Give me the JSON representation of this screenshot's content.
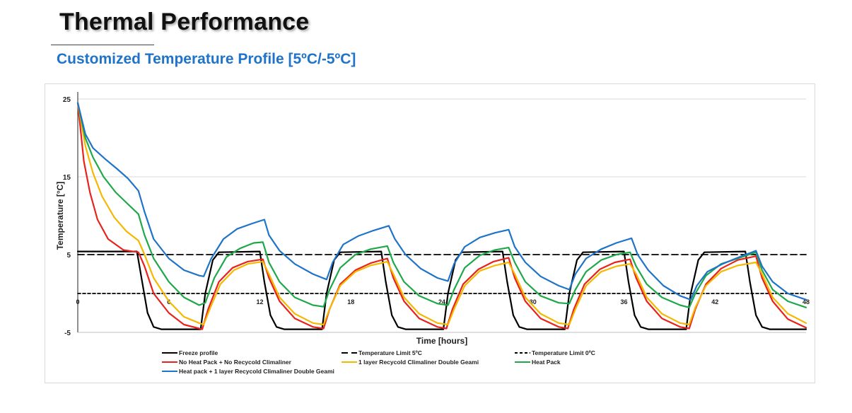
{
  "page": {
    "title": "Thermal Performance",
    "subtitle": "Customized Temperature Profile [5ºC/-5ºC]",
    "subtitle_color": "#1f73c8"
  },
  "chart_data": {
    "type": "line",
    "title": "",
    "xlabel": "Time [hours]",
    "ylabel": "Temperature [°C]",
    "xlim": [
      0,
      48
    ],
    "ylim": [
      -5,
      25
    ],
    "xticks": [
      0,
      6,
      12,
      18,
      24,
      30,
      36,
      42,
      48
    ],
    "yticks": [
      -5,
      5,
      15,
      25
    ],
    "grid": "horizontal",
    "legend_position": "bottom",
    "series": [
      {
        "name": "Freeze profile",
        "color": "#000000",
        "dash": "solid",
        "points": [
          [
            0,
            5.4
          ],
          [
            3.9,
            5.4
          ],
          [
            4.2,
            2
          ],
          [
            4.6,
            -2.5
          ],
          [
            5.0,
            -4.3
          ],
          [
            5.5,
            -4.6
          ],
          [
            8.1,
            -4.6
          ],
          [
            8.4,
            0
          ],
          [
            8.9,
            4.3
          ],
          [
            9.3,
            5.3
          ],
          [
            12.0,
            5.4
          ],
          [
            12.3,
            1.5
          ],
          [
            12.7,
            -2.8
          ],
          [
            13.1,
            -4.3
          ],
          [
            13.6,
            -4.6
          ],
          [
            16.1,
            -4.6
          ],
          [
            16.4,
            0
          ],
          [
            16.9,
            4.3
          ],
          [
            17.3,
            5.3
          ],
          [
            20.0,
            5.4
          ],
          [
            20.3,
            1.5
          ],
          [
            20.7,
            -2.8
          ],
          [
            21.1,
            -4.3
          ],
          [
            21.6,
            -4.6
          ],
          [
            24.1,
            -4.6
          ],
          [
            24.4,
            0
          ],
          [
            24.9,
            4.3
          ],
          [
            25.3,
            5.3
          ],
          [
            28.0,
            5.4
          ],
          [
            28.3,
            1.5
          ],
          [
            28.7,
            -2.8
          ],
          [
            29.1,
            -4.3
          ],
          [
            29.6,
            -4.6
          ],
          [
            32.1,
            -4.6
          ],
          [
            32.4,
            0
          ],
          [
            32.9,
            4.3
          ],
          [
            33.3,
            5.3
          ],
          [
            36.0,
            5.4
          ],
          [
            36.3,
            1.5
          ],
          [
            36.7,
            -2.8
          ],
          [
            37.1,
            -4.3
          ],
          [
            37.6,
            -4.6
          ],
          [
            40.1,
            -4.6
          ],
          [
            40.4,
            0
          ],
          [
            40.9,
            4.3
          ],
          [
            41.3,
            5.3
          ],
          [
            44.0,
            5.4
          ],
          [
            44.3,
            1.5
          ],
          [
            44.7,
            -2.8
          ],
          [
            45.1,
            -4.3
          ],
          [
            45.6,
            -4.6
          ],
          [
            48,
            -4.6
          ]
        ]
      },
      {
        "name": "Temperature Limit 5ºC",
        "color": "#000000",
        "dash": "dashed",
        "points": [
          [
            0,
            5
          ],
          [
            48,
            5
          ]
        ]
      },
      {
        "name": "Temperature Limit 0ºC",
        "color": "#000000",
        "dash": "dotted",
        "points": [
          [
            0,
            0
          ],
          [
            48,
            0
          ]
        ]
      },
      {
        "name": "No Heat Pack + No Recycold Climaliner",
        "color": "#e8221c",
        "dash": "solid",
        "points": [
          [
            0,
            24.5
          ],
          [
            0.4,
            17
          ],
          [
            0.8,
            13
          ],
          [
            1.3,
            9.5
          ],
          [
            2,
            7
          ],
          [
            3,
            5.6
          ],
          [
            4,
            5.3
          ],
          [
            4.4,
            3.5
          ],
          [
            5,
            0
          ],
          [
            6,
            -2.5
          ],
          [
            7,
            -4
          ],
          [
            8,
            -4.5
          ],
          [
            8.2,
            -4.6
          ],
          [
            8.6,
            -2
          ],
          [
            9.3,
            1.5
          ],
          [
            10.2,
            3.3
          ],
          [
            11.2,
            4.1
          ],
          [
            12.2,
            4.4
          ],
          [
            12.6,
            2
          ],
          [
            13.3,
            -1
          ],
          [
            14.3,
            -3.2
          ],
          [
            15.5,
            -4.3
          ],
          [
            16.2,
            -4.5
          ],
          [
            16.6,
            -2
          ],
          [
            17.3,
            1.2
          ],
          [
            18.3,
            3
          ],
          [
            19.3,
            3.9
          ],
          [
            20.4,
            4.5
          ],
          [
            20.8,
            2
          ],
          [
            21.5,
            -1
          ],
          [
            22.5,
            -3.2
          ],
          [
            23.7,
            -4.3
          ],
          [
            24.3,
            -4.5
          ],
          [
            24.7,
            -2
          ],
          [
            25.4,
            1.2
          ],
          [
            26.4,
            3.1
          ],
          [
            27.4,
            4.1
          ],
          [
            28.4,
            4.6
          ],
          [
            28.8,
            2
          ],
          [
            29.5,
            -1
          ],
          [
            30.5,
            -3.2
          ],
          [
            31.7,
            -4.3
          ],
          [
            32.3,
            -4.5
          ],
          [
            32.7,
            -2
          ],
          [
            33.4,
            1.2
          ],
          [
            34.4,
            3.1
          ],
          [
            35.4,
            4
          ],
          [
            36.4,
            4.4
          ],
          [
            36.8,
            2
          ],
          [
            37.5,
            -1
          ],
          [
            38.5,
            -3.2
          ],
          [
            39.7,
            -4.3
          ],
          [
            40.3,
            -4.5
          ],
          [
            40.7,
            -2
          ],
          [
            41.4,
            1.2
          ],
          [
            42.4,
            3.2
          ],
          [
            43.5,
            4.3
          ],
          [
            44.7,
            4.8
          ],
          [
            45.1,
            2
          ],
          [
            45.8,
            -1
          ],
          [
            46.8,
            -3.3
          ],
          [
            48,
            -4.4
          ]
        ]
      },
      {
        "name": "1 layer Recycold Climaliner Double Geami",
        "color": "#f5b800",
        "dash": "solid",
        "points": [
          [
            0,
            24.5
          ],
          [
            0.5,
            19
          ],
          [
            1,
            15.5
          ],
          [
            1.6,
            12.5
          ],
          [
            2.4,
            9.8
          ],
          [
            3.2,
            8
          ],
          [
            4,
            6.8
          ],
          [
            4.4,
            5
          ],
          [
            5,
            2
          ],
          [
            6,
            -1
          ],
          [
            7,
            -3
          ],
          [
            8,
            -3.8
          ],
          [
            8.3,
            -4
          ],
          [
            8.7,
            -2
          ],
          [
            9.4,
            1.2
          ],
          [
            10.3,
            3
          ],
          [
            11.2,
            3.8
          ],
          [
            12.2,
            4.1
          ],
          [
            12.6,
            2.5
          ],
          [
            13.3,
            -0.5
          ],
          [
            14.3,
            -2.6
          ],
          [
            15.5,
            -3.8
          ],
          [
            16.2,
            -4
          ],
          [
            16.6,
            -2
          ],
          [
            17.3,
            1
          ],
          [
            18.3,
            2.8
          ],
          [
            19.3,
            3.6
          ],
          [
            20.4,
            4.1
          ],
          [
            20.8,
            2.5
          ],
          [
            21.5,
            -0.5
          ],
          [
            22.5,
            -2.6
          ],
          [
            23.7,
            -3.8
          ],
          [
            24.4,
            -4
          ],
          [
            24.8,
            -2
          ],
          [
            25.5,
            1
          ],
          [
            26.5,
            2.9
          ],
          [
            27.5,
            3.6
          ],
          [
            28.4,
            4
          ],
          [
            28.8,
            2.5
          ],
          [
            29.5,
            -0.5
          ],
          [
            30.5,
            -2.6
          ],
          [
            31.7,
            -3.8
          ],
          [
            32.4,
            -4
          ],
          [
            32.8,
            -2
          ],
          [
            33.5,
            1
          ],
          [
            34.5,
            2.8
          ],
          [
            35.5,
            3.5
          ],
          [
            36.4,
            3.8
          ],
          [
            36.8,
            2.5
          ],
          [
            37.5,
            -0.5
          ],
          [
            38.5,
            -2.6
          ],
          [
            39.7,
            -3.8
          ],
          [
            40.3,
            -4
          ],
          [
            40.7,
            -1.8
          ],
          [
            41.4,
            1
          ],
          [
            42.4,
            2.8
          ],
          [
            43.5,
            3.6
          ],
          [
            44.7,
            4
          ],
          [
            45.1,
            2.5
          ],
          [
            45.8,
            -0.5
          ],
          [
            46.8,
            -2.6
          ],
          [
            48,
            -3.8
          ]
        ]
      },
      {
        "name": "Heat Pack",
        "color": "#1fa84a",
        "dash": "solid",
        "points": [
          [
            0,
            24.5
          ],
          [
            0.5,
            20
          ],
          [
            1,
            17.5
          ],
          [
            1.7,
            15
          ],
          [
            2.5,
            13
          ],
          [
            3.3,
            11.5
          ],
          [
            4,
            10.2
          ],
          [
            4.4,
            7.5
          ],
          [
            5,
            4.5
          ],
          [
            6,
            1.5
          ],
          [
            7,
            -0.5
          ],
          [
            8,
            -1.5
          ],
          [
            8.4,
            -1.2
          ],
          [
            9,
            2
          ],
          [
            9.8,
            4.7
          ],
          [
            10.7,
            5.8
          ],
          [
            11.6,
            6.5
          ],
          [
            12.2,
            6.6
          ],
          [
            12.6,
            4
          ],
          [
            13.3,
            1.5
          ],
          [
            14.3,
            -0.5
          ],
          [
            15.5,
            -1.5
          ],
          [
            16.2,
            -1.7
          ],
          [
            16.6,
            0.5
          ],
          [
            17.3,
            3.3
          ],
          [
            18.3,
            5
          ],
          [
            19.3,
            5.7
          ],
          [
            20.4,
            6.1
          ],
          [
            20.8,
            4
          ],
          [
            21.5,
            1.5
          ],
          [
            22.5,
            -0.3
          ],
          [
            23.7,
            -1.3
          ],
          [
            24.4,
            -1.5
          ],
          [
            24.8,
            0.5
          ],
          [
            25.5,
            3.3
          ],
          [
            26.5,
            4.9
          ],
          [
            27.5,
            5.6
          ],
          [
            28.4,
            5.9
          ],
          [
            28.8,
            4
          ],
          [
            29.5,
            1.5
          ],
          [
            30.5,
            -0.3
          ],
          [
            31.7,
            -1.2
          ],
          [
            32.4,
            -1.3
          ],
          [
            32.8,
            0.5
          ],
          [
            33.5,
            2.8
          ],
          [
            34.5,
            4.3
          ],
          [
            35.5,
            5
          ],
          [
            36.4,
            5.3
          ],
          [
            36.8,
            3.5
          ],
          [
            37.5,
            1.2
          ],
          [
            38.5,
            -0.5
          ],
          [
            39.7,
            -1.5
          ],
          [
            40.3,
            -1.8
          ],
          [
            40.7,
            0
          ],
          [
            41.4,
            2.3
          ],
          [
            42.4,
            3.8
          ],
          [
            43.5,
            4.5
          ],
          [
            44.7,
            5.3
          ],
          [
            45.1,
            3
          ],
          [
            45.8,
            0.5
          ],
          [
            46.8,
            -1
          ],
          [
            48,
            -1.8
          ]
        ]
      },
      {
        "name": "Heat pack + 1 layer Recycold Climaliner Double Geami",
        "color": "#1f73c8",
        "dash": "solid",
        "points": [
          [
            0,
            24.5
          ],
          [
            0.5,
            20.5
          ],
          [
            1,
            18.7
          ],
          [
            1.8,
            17.3
          ],
          [
            2.6,
            16
          ],
          [
            3.3,
            14.8
          ],
          [
            4,
            13.2
          ],
          [
            4.4,
            10.5
          ],
          [
            5,
            7
          ],
          [
            6,
            4.5
          ],
          [
            7,
            3
          ],
          [
            8,
            2.3
          ],
          [
            8.3,
            2.2
          ],
          [
            8.8,
            4.5
          ],
          [
            9.6,
            7
          ],
          [
            10.5,
            8.3
          ],
          [
            11.5,
            9
          ],
          [
            12.3,
            9.5
          ],
          [
            12.6,
            7.5
          ],
          [
            13.3,
            5.5
          ],
          [
            14.3,
            3.8
          ],
          [
            15.5,
            2.5
          ],
          [
            16.4,
            1.8
          ],
          [
            16.8,
            4
          ],
          [
            17.5,
            6.3
          ],
          [
            18.5,
            7.4
          ],
          [
            19.5,
            8.1
          ],
          [
            20.5,
            8.7
          ],
          [
            20.9,
            7
          ],
          [
            21.6,
            5
          ],
          [
            22.6,
            3.2
          ],
          [
            23.7,
            2
          ],
          [
            24.4,
            1.6
          ],
          [
            24.8,
            3.8
          ],
          [
            25.5,
            6
          ],
          [
            26.5,
            7.2
          ],
          [
            27.5,
            7.8
          ],
          [
            28.4,
            8.2
          ],
          [
            28.8,
            6
          ],
          [
            29.5,
            4
          ],
          [
            30.5,
            2.2
          ],
          [
            31.7,
            1
          ],
          [
            32.4,
            0.5
          ],
          [
            32.8,
            2.5
          ],
          [
            33.5,
            4.5
          ],
          [
            34.5,
            5.7
          ],
          [
            35.5,
            6.5
          ],
          [
            36.5,
            7.1
          ],
          [
            36.9,
            5
          ],
          [
            37.6,
            3
          ],
          [
            38.6,
            1
          ],
          [
            39.7,
            -0.3
          ],
          [
            40.4,
            -0.8
          ],
          [
            40.8,
            1
          ],
          [
            41.5,
            2.8
          ],
          [
            42.5,
            3.8
          ],
          [
            43.5,
            4.6
          ],
          [
            44.7,
            5.5
          ],
          [
            45.1,
            3.5
          ],
          [
            45.8,
            1.5
          ],
          [
            46.8,
            0
          ],
          [
            48,
            -0.8
          ]
        ]
      }
    ]
  }
}
